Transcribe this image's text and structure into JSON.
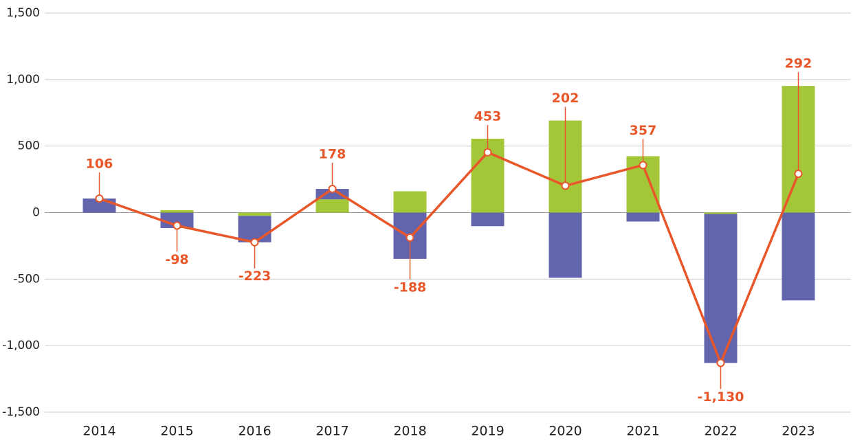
{
  "chart_data": {
    "type": "bar_line",
    "categories": [
      "2014",
      "2015",
      "2016",
      "2017",
      "2018",
      "2019",
      "2020",
      "2021",
      "2022",
      "2023"
    ],
    "series": [
      {
        "color": "#a4c639",
        "type": "bar",
        "values": [
          0,
          18,
          -25,
          100,
          160,
          555,
          692,
          424,
          -10,
          952
        ]
      },
      {
        "color": "#6264ae",
        "type": "bar",
        "values": [
          106,
          -116,
          -198,
          78,
          -348,
          -102,
          -490,
          -67,
          -1120,
          -660
        ]
      },
      {
        "color": "#e8572a",
        "type": "line",
        "values": [
          106,
          -98,
          -223,
          178,
          -188,
          453,
          202,
          357,
          -1130,
          292
        ],
        "value_labels": [
          "106",
          "-98",
          "-223",
          "178",
          "-188",
          "453",
          "202",
          "357",
          "-1,130",
          "292"
        ]
      }
    ],
    "ylim": [
      -1500,
      1500
    ],
    "yticks": [
      {
        "value": -1500,
        "label": "-1,500"
      },
      {
        "value": -1000,
        "label": "-1,000"
      },
      -500,
      0,
      500,
      {
        "value": 1000,
        "label": "1,000"
      },
      {
        "value": 1500,
        "label": "1,500"
      }
    ],
    "grid": true
  }
}
